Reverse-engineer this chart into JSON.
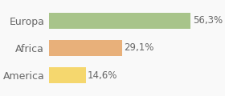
{
  "categories": [
    "America",
    "Africa",
    "Europa"
  ],
  "values": [
    14.6,
    29.1,
    56.3
  ],
  "labels": [
    "14,6%",
    "29,1%",
    "56,3%"
  ],
  "bar_colors": [
    "#f5d76e",
    "#e8b07a",
    "#a8c48a"
  ],
  "background_color": "#f9f9f9",
  "xlim": [
    0,
    68
  ],
  "bar_height": 0.58,
  "label_fontsize": 8.5,
  "tick_fontsize": 9
}
